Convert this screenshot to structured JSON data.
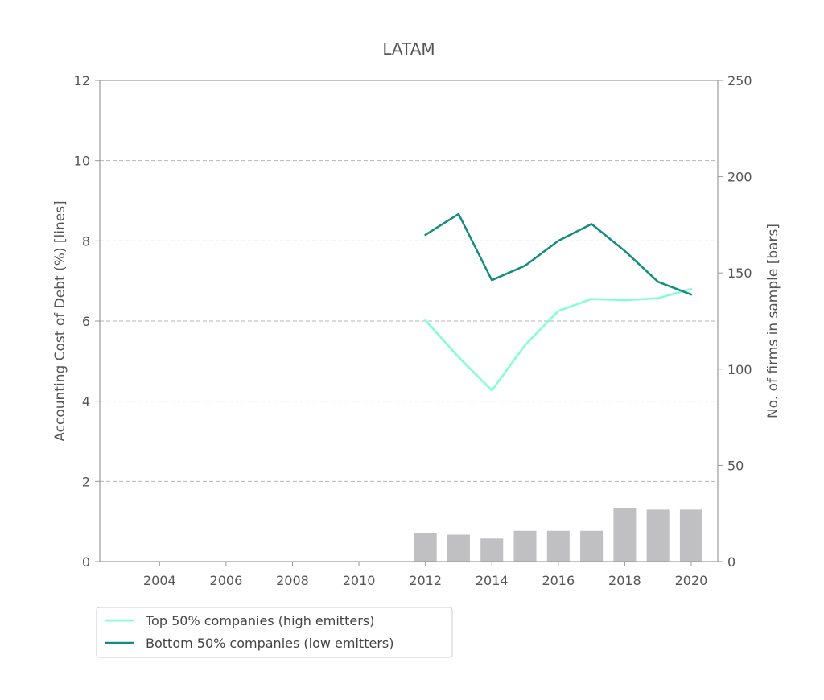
{
  "chart_data": {
    "type": "line",
    "title": "LATAM",
    "ylabel": "Accounting Cost of Debt (%)  [lines]",
    "y2label": "No. of firms in sample [bars]",
    "xlim": [
      2002.2,
      2020.8
    ],
    "ylim": [
      0,
      12
    ],
    "y2lim": [
      0,
      250
    ],
    "x_ticks": [
      "2004",
      "2006",
      "2008",
      "2010",
      "2012",
      "2014",
      "2016",
      "2018",
      "2020"
    ],
    "y_ticks": [
      "0",
      "2",
      "4",
      "6",
      "8",
      "10",
      "12"
    ],
    "y2_ticks": [
      "0",
      "50",
      "100",
      "150",
      "200",
      "250"
    ],
    "grid": "horizontal dashed",
    "legend_position": "below-left",
    "x": [
      2012,
      2013,
      2014,
      2015,
      2016,
      2017,
      2018,
      2019,
      2020
    ],
    "series": [
      {
        "name": "Top 50% companies (high emitters)",
        "color": "#7fffd4",
        "values": [
          6.02,
          5.1,
          4.27,
          5.4,
          6.25,
          6.55,
          6.52,
          6.57,
          6.8
        ]
      },
      {
        "name": "Bottom 50% companies (low emitters)",
        "color": "#138d7e",
        "values": [
          8.15,
          8.67,
          7.02,
          7.38,
          8.0,
          8.42,
          7.75,
          6.98,
          6.66
        ]
      }
    ],
    "bars": {
      "color": "#c0c0c2",
      "values": [
        15,
        14,
        12,
        16,
        16,
        16,
        28,
        27,
        27
      ]
    }
  }
}
